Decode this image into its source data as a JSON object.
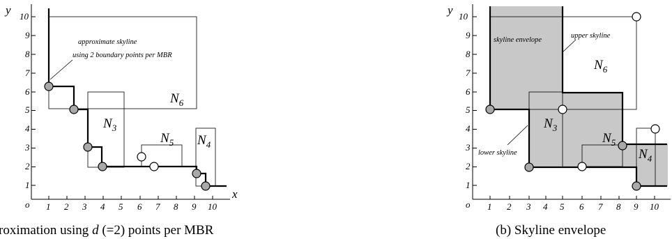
{
  "left_panel": {
    "y_axis_label": "y",
    "x_axis_label": "x",
    "origin_label": "o",
    "y_ticks": [
      "1",
      "2",
      "3",
      "4",
      "5",
      "6",
      "7",
      "8",
      "9",
      "10"
    ],
    "x_ticks": [
      "1",
      "2",
      "3",
      "4",
      "5",
      "6",
      "7",
      "8",
      "9",
      "10"
    ],
    "annotation_line1": "approximate skyline",
    "annotation_line2": "using 2 boundary points per MBR",
    "nodes": [
      {
        "name": "N",
        "sub": "6"
      },
      {
        "name": "N",
        "sub": "3"
      },
      {
        "name": "N",
        "sub": "5"
      },
      {
        "name": "N",
        "sub": "4"
      }
    ],
    "caption_pre": "roximation using ",
    "caption_var": "d",
    "caption_post": " (=2) points per MBR"
  },
  "right_panel": {
    "y_axis_label": "y",
    "origin_label": "o",
    "y_ticks": [
      "1",
      "2",
      "3",
      "4",
      "5",
      "6",
      "7",
      "8",
      "9",
      "10"
    ],
    "x_ticks": [
      "1",
      "2",
      "3",
      "4",
      "5",
      "6",
      "7",
      "8",
      "9",
      "10"
    ],
    "label_skyline_envelope": "skyline envelope",
    "label_upper_skyline": "upper skyline",
    "label_lower_skyline": "lower skyline",
    "nodes": [
      {
        "name": "N",
        "sub": "6"
      },
      {
        "name": "N",
        "sub": "3"
      },
      {
        "name": "N",
        "sub": "5"
      },
      {
        "name": "N",
        "sub": "4"
      }
    ],
    "caption": "(b) Skyline envelope"
  },
  "colors": {
    "shade": "#c8c8c8",
    "filled_point": "#a9a9a9",
    "line": "#000000"
  }
}
